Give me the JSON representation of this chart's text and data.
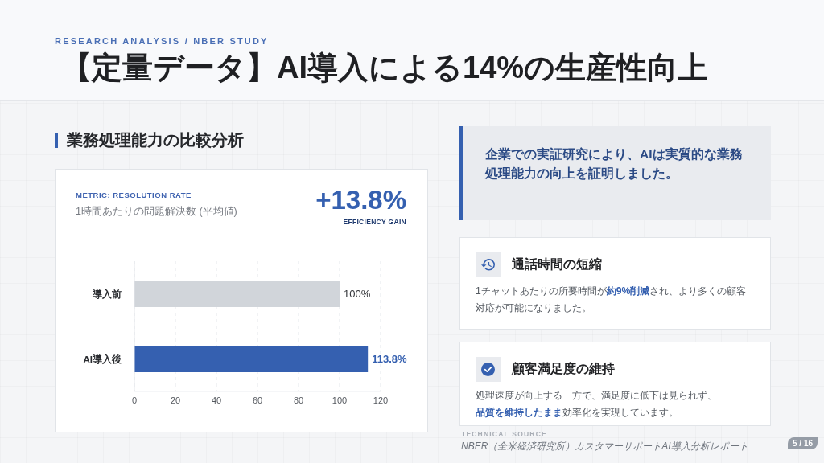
{
  "chart_data": [
    {
      "type": "other",
      "title": "【定量データ】AI導入による14%の生産性向上",
      "subtitle": "RESEARCH ANALYSIS / NBER STUDY"
    },
    {
      "type": "bar",
      "orientation": "horizontal",
      "title": "業務処理能力の比較分析",
      "subtitle": "1時間あたりの問題解決数 (平均値)",
      "annotations": [
        "METRIC: RESOLUTION RATE",
        "+13.8%",
        "EFFICIENCY GAIN"
      ],
      "categories": [
        "導入前",
        "AI導入後"
      ],
      "values": [
        100,
        113.8
      ],
      "colors": [
        "#d1d5da",
        "#3560b0"
      ],
      "value_labels": [
        "100%",
        "113.8%"
      ],
      "xlim": [
        0,
        120
      ],
      "xticks": [
        0,
        20,
        40,
        60,
        80,
        100,
        120
      ],
      "grid": "x"
    },
    {
      "type": "other",
      "annotations": [
        "企業での実証研究により、AIは実質的な業務処理能力の向上を証明しました。",
        "通話時間の短縮",
        "1チャットあたりの所要時間が",
        "約9%削減",
        "され、より多くの顧客対応が可能になりました。",
        "顧客満足度の維持",
        "処理速度が向上する一方で、満足度に低下は見られず、",
        "品質を維持したまま",
        "効率化を実現しています。",
        "TECHNICAL SOURCE",
        "NBER（全米経済研究所）カスタマーサポートAI導入分析レポート",
        "5 / 16"
      ]
    }
  ]
}
